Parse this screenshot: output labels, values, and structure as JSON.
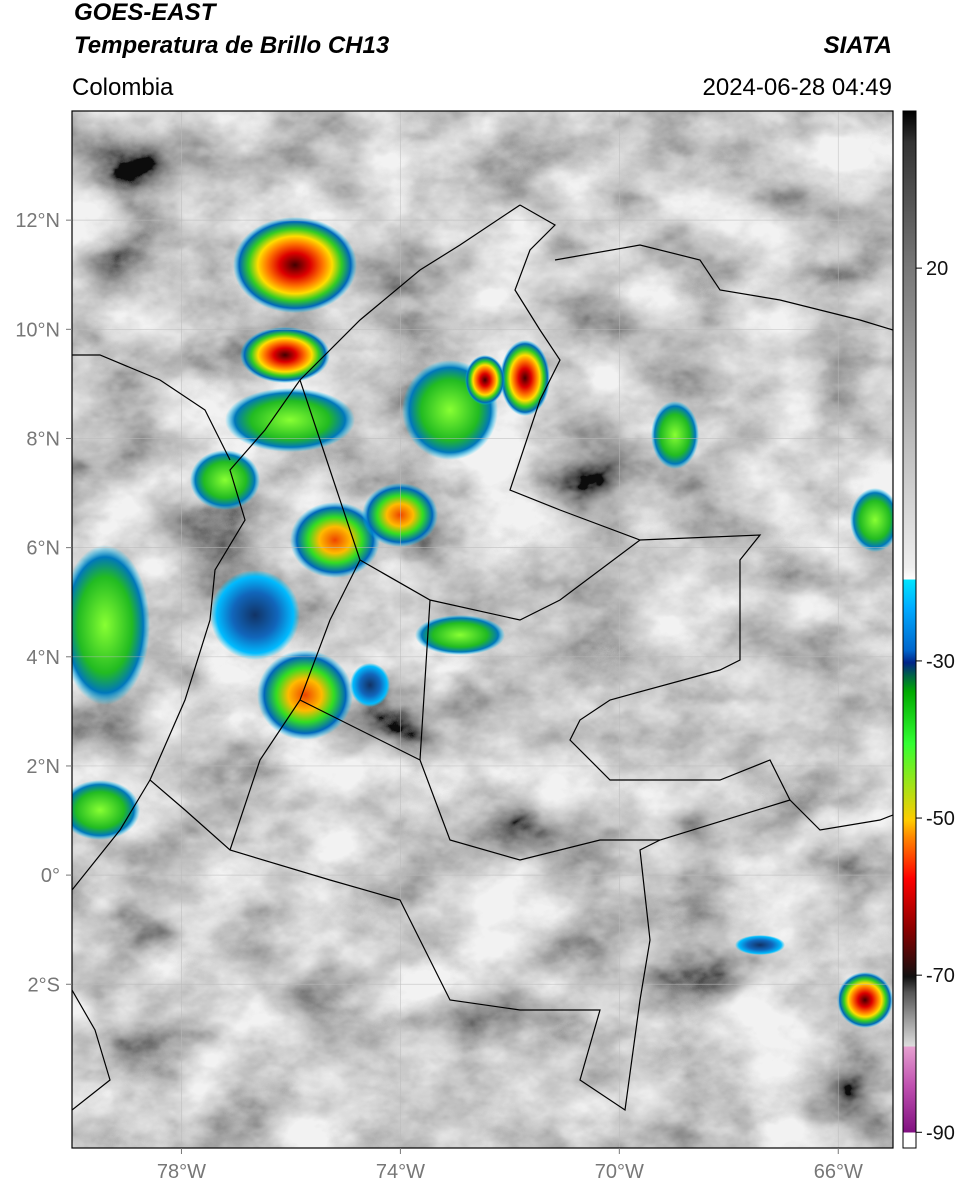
{
  "header": {
    "title": "GOES-EAST",
    "subtitle": "Temperatura de Brillo CH13",
    "region": "Colombia",
    "source": "SIATA",
    "timestamp": "2024-06-28 04:49"
  },
  "map": {
    "xlim": [
      -80,
      -65
    ],
    "ylim": [
      -5,
      14
    ],
    "xticks": [
      {
        "value": -78,
        "label": "78°W"
      },
      {
        "value": -74,
        "label": "74°W"
      },
      {
        "value": -70,
        "label": "70°W"
      },
      {
        "value": -66,
        "label": "66°W"
      }
    ],
    "yticks": [
      {
        "value": 12,
        "label": "12°N"
      },
      {
        "value": 10,
        "label": "10°N"
      },
      {
        "value": 8,
        "label": "8°N"
      },
      {
        "value": 6,
        "label": "6°N"
      },
      {
        "value": 4,
        "label": "4°N"
      },
      {
        "value": 2,
        "label": "2°N"
      },
      {
        "value": 0,
        "label": "0°"
      },
      {
        "value": -2,
        "label": "2°S"
      }
    ],
    "grid": true
  },
  "colorbar": {
    "lim": [
      -92,
      40
    ],
    "ticks": [
      20,
      -30,
      -50,
      -70,
      -90
    ]
  }
}
